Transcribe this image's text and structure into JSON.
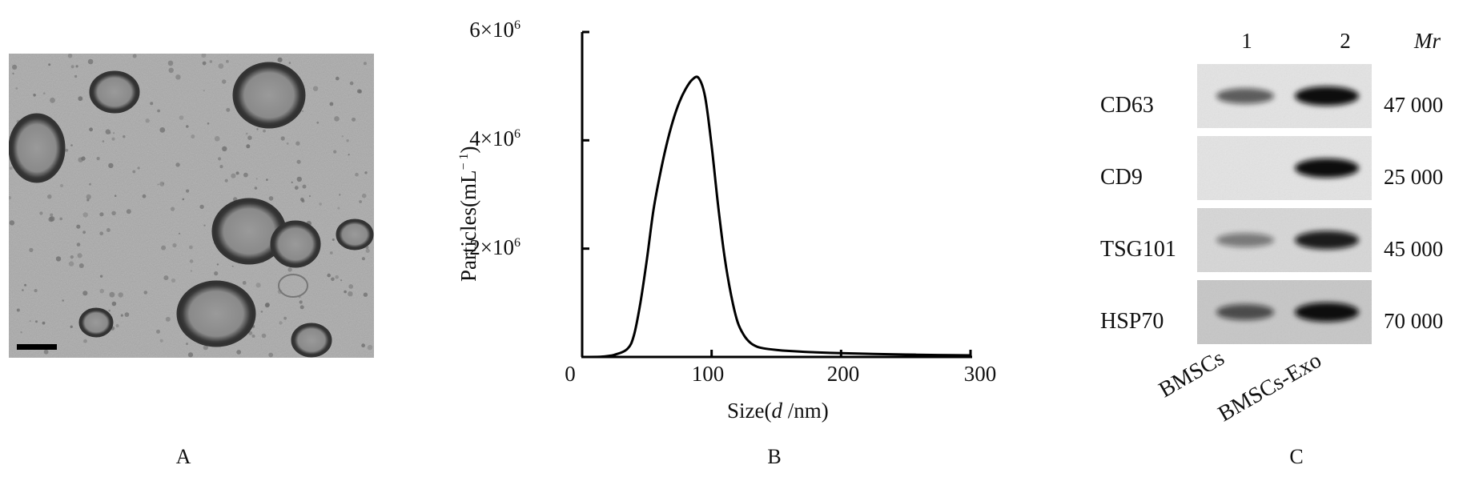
{
  "panels": {
    "a": {
      "label": "A"
    },
    "b": {
      "label": "B"
    },
    "c": {
      "label": "C"
    }
  },
  "chart_data": {
    "type": "line",
    "ylabel": "Particles(mL⁻¹)",
    "xlabel": "Size( d /nm)",
    "xlabel_parts": {
      "prefix": "Size(",
      "var": "d",
      "suffix": " /nm)"
    },
    "ylabel_parts": {
      "base": "Particles(mL",
      "sup": "− 1",
      "close": ")"
    },
    "xlim": [
      0,
      300
    ],
    "ylim": [
      0,
      6000000
    ],
    "x_ticks": [
      {
        "value": 0,
        "label": "0"
      },
      {
        "value": 100,
        "label": "100"
      },
      {
        "value": 200,
        "label": "200"
      },
      {
        "value": 300,
        "label": "300"
      }
    ],
    "y_ticks": [
      {
        "value": 2000000,
        "label": "2×10",
        "sup": "6"
      },
      {
        "value": 4000000,
        "label": "4×10",
        "sup": "6"
      },
      {
        "value": 6000000,
        "label": "6×10",
        "sup": "6"
      }
    ],
    "series": [
      {
        "x": [
          0,
          15,
          25,
          35,
          40,
          45,
          50,
          55,
          60,
          65,
          70,
          75,
          80,
          85,
          90,
          95,
          100,
          105,
          110,
          115,
          120,
          125,
          130,
          135,
          140,
          150,
          160,
          175,
          200,
          225,
          250,
          275,
          300
        ],
        "y": [
          0,
          5000,
          40000,
          150000,
          400000,
          1000000,
          1800000,
          2700000,
          3350000,
          3900000,
          4350000,
          4700000,
          4950000,
          5120000,
          5150000,
          4800000,
          3900000,
          2800000,
          1850000,
          1150000,
          650000,
          400000,
          260000,
          190000,
          160000,
          130000,
          110000,
          90000,
          70000,
          55000,
          45000,
          35000,
          30000
        ]
      }
    ]
  },
  "blot": {
    "lanes": [
      {
        "number": "1",
        "sample": "BMSCs"
      },
      {
        "number": "2",
        "sample": "BMSCs-Exo"
      }
    ],
    "mr_header": "Mr",
    "rows": [
      {
        "protein": "CD63",
        "mw": "47 000",
        "bands": [
          0.55,
          1.0
        ]
      },
      {
        "protein": "CD9",
        "mw": "25 000",
        "bands": [
          0.0,
          1.0
        ]
      },
      {
        "protein": "TSG101",
        "mw": "45 000",
        "bands": [
          0.35,
          0.9
        ]
      },
      {
        "protein": "HSP70",
        "mw": "70 000",
        "bands": [
          0.6,
          1.0
        ]
      }
    ]
  }
}
